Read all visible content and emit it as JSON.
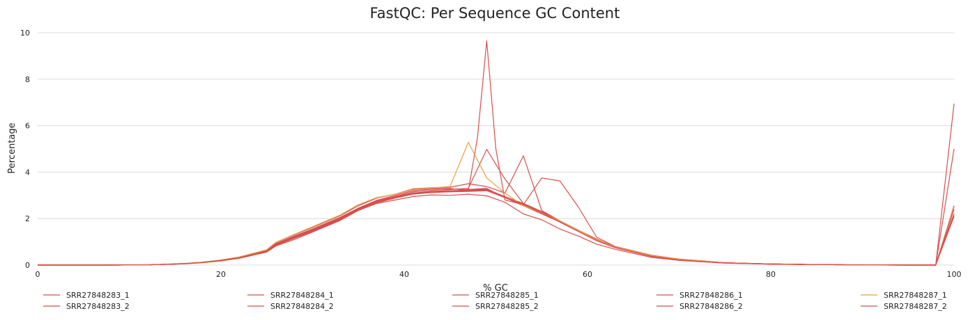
{
  "chart_data": {
    "type": "line",
    "title": "FastQC: Per Sequence GC Content",
    "xlabel": "% GC",
    "ylabel": "Percentage",
    "xlim": [
      0,
      100
    ],
    "ylim": [
      0,
      10
    ],
    "xticks": [
      0,
      20,
      40,
      60,
      80,
      100
    ],
    "yticks": [
      0,
      2,
      4,
      6,
      8,
      10
    ],
    "grid": "horizontal",
    "legend_position": "bottom",
    "series": [
      {
        "name": "SRR27848283_1",
        "color": "#d64e4e",
        "x": [
          0,
          8,
          12,
          16,
          18,
          20,
          22,
          24,
          25,
          26,
          28,
          30,
          33,
          35,
          37,
          39,
          41,
          43,
          45,
          47,
          49,
          51,
          53,
          55,
          57,
          59,
          61,
          63,
          67,
          70,
          75,
          80,
          85,
          90,
          95,
          98,
          100
        ],
        "y": [
          0,
          0,
          0.01,
          0.06,
          0.12,
          0.2,
          0.32,
          0.5,
          0.6,
          0.9,
          1.2,
          1.5,
          2.0,
          2.4,
          2.72,
          2.93,
          3.1,
          3.17,
          3.2,
          3.22,
          3.25,
          2.95,
          2.65,
          2.3,
          1.9,
          1.5,
          1.1,
          0.8,
          0.4,
          0.25,
          0.1,
          0.05,
          0.02,
          0.01,
          0,
          0,
          2.55
        ]
      },
      {
        "name": "SRR27848283_2",
        "color": "#d64e4e",
        "x": [
          0,
          8,
          12,
          16,
          18,
          20,
          22,
          24,
          25,
          26,
          28,
          30,
          33,
          35,
          37,
          39,
          41,
          43,
          45,
          47,
          49,
          51,
          53,
          55,
          57,
          59,
          61,
          63,
          67,
          70,
          75,
          80,
          85,
          90,
          95,
          98,
          100
        ],
        "y": [
          0,
          0,
          0.01,
          0.05,
          0.11,
          0.19,
          0.3,
          0.48,
          0.58,
          0.85,
          1.15,
          1.45,
          1.95,
          2.35,
          2.68,
          2.88,
          3.05,
          3.12,
          3.15,
          3.17,
          3.2,
          2.9,
          2.6,
          2.25,
          1.85,
          1.45,
          1.05,
          0.75,
          0.37,
          0.22,
          0.09,
          0.04,
          0.02,
          0.01,
          0,
          0,
          2.2
        ]
      },
      {
        "name": "SRR27848284_1",
        "color": "#d64e4e",
        "x": [
          0,
          8,
          12,
          16,
          18,
          20,
          22,
          24,
          25,
          26,
          28,
          30,
          33,
          35,
          37,
          39,
          41,
          43,
          45,
          47,
          48,
          49,
          50,
          51,
          53,
          55,
          57,
          59,
          61,
          63,
          67,
          70,
          75,
          80,
          85,
          90,
          95,
          98,
          100
        ],
        "y": [
          0,
          0,
          0.01,
          0.06,
          0.12,
          0.21,
          0.33,
          0.51,
          0.62,
          0.93,
          1.25,
          1.55,
          2.05,
          2.45,
          2.78,
          3.0,
          3.2,
          3.28,
          3.3,
          3.2,
          5.5,
          9.65,
          5.0,
          2.8,
          2.6,
          2.3,
          1.9,
          1.5,
          1.12,
          0.78,
          0.4,
          0.25,
          0.1,
          0.05,
          0.02,
          0.01,
          0,
          0,
          6.95
        ]
      },
      {
        "name": "SRR27848284_2",
        "color": "#d64e4e",
        "x": [
          0,
          8,
          12,
          16,
          18,
          20,
          22,
          24,
          25,
          26,
          28,
          30,
          33,
          35,
          37,
          39,
          41,
          43,
          45,
          47,
          49,
          51,
          53,
          55,
          57,
          59,
          61,
          63,
          67,
          70,
          75,
          80,
          85,
          90,
          95,
          98,
          100
        ],
        "y": [
          0,
          0,
          0.01,
          0.06,
          0.12,
          0.2,
          0.32,
          0.5,
          0.6,
          0.9,
          1.2,
          1.52,
          2.02,
          2.42,
          2.75,
          2.95,
          3.15,
          3.22,
          3.25,
          3.3,
          4.98,
          3.7,
          2.65,
          2.3,
          1.9,
          1.5,
          1.1,
          0.78,
          0.4,
          0.24,
          0.1,
          0.05,
          0.02,
          0.01,
          0,
          0,
          5.0
        ]
      },
      {
        "name": "SRR27848285_1",
        "color": "#d64e4e",
        "x": [
          0,
          8,
          12,
          16,
          18,
          20,
          22,
          24,
          25,
          26,
          28,
          30,
          33,
          35,
          37,
          39,
          41,
          43,
          45,
          47,
          49,
          51,
          53,
          55,
          57,
          59,
          61,
          63,
          67,
          70,
          75,
          80,
          85,
          90,
          95,
          98,
          100
        ],
        "y": [
          0,
          0,
          0.01,
          0.07,
          0.13,
          0.22,
          0.35,
          0.55,
          0.66,
          0.98,
          1.3,
          1.62,
          2.12,
          2.55,
          2.88,
          3.05,
          3.28,
          3.33,
          3.35,
          3.5,
          3.38,
          3.1,
          4.7,
          2.35,
          1.9,
          1.5,
          1.12,
          0.78,
          0.4,
          0.25,
          0.1,
          0.05,
          0.02,
          0.01,
          0,
          0,
          2.55
        ]
      },
      {
        "name": "SRR27848285_2",
        "color": "#d64e4e",
        "x": [
          0,
          8,
          12,
          16,
          18,
          20,
          22,
          24,
          25,
          26,
          28,
          30,
          33,
          35,
          37,
          39,
          41,
          43,
          45,
          47,
          49,
          51,
          53,
          55,
          57,
          59,
          61,
          63,
          67,
          70,
          75,
          80,
          85,
          90,
          95,
          98,
          100
        ],
        "y": [
          0,
          0,
          0.01,
          0.06,
          0.12,
          0.2,
          0.32,
          0.5,
          0.6,
          0.88,
          1.18,
          1.5,
          2.0,
          2.4,
          2.7,
          2.9,
          3.1,
          3.15,
          3.18,
          3.2,
          3.22,
          2.9,
          2.55,
          2.2,
          1.85,
          1.45,
          1.05,
          0.75,
          0.37,
          0.22,
          0.09,
          0.04,
          0.02,
          0.01,
          0,
          0,
          2.1
        ]
      },
      {
        "name": "SRR27848286_1",
        "color": "#d64e4e",
        "x": [
          0,
          8,
          12,
          16,
          18,
          20,
          22,
          24,
          25,
          26,
          28,
          30,
          33,
          35,
          37,
          39,
          41,
          43,
          45,
          47,
          49,
          51,
          53,
          55,
          57,
          59,
          61,
          63,
          67,
          70,
          75,
          80,
          85,
          90,
          95,
          98,
          100
        ],
        "y": [
          0,
          0,
          0.01,
          0.06,
          0.12,
          0.21,
          0.33,
          0.52,
          0.63,
          0.92,
          1.22,
          1.55,
          2.05,
          2.45,
          2.78,
          3.0,
          3.2,
          3.27,
          3.28,
          3.25,
          3.3,
          2.9,
          2.6,
          3.75,
          3.62,
          2.5,
          1.2,
          0.8,
          0.42,
          0.26,
          0.1,
          0.05,
          0.02,
          0.01,
          0,
          0,
          2.5
        ]
      },
      {
        "name": "SRR27848286_2",
        "color": "#d64e4e",
        "x": [
          0,
          8,
          12,
          16,
          18,
          20,
          22,
          24,
          25,
          26,
          28,
          30,
          33,
          35,
          37,
          39,
          41,
          43,
          45,
          47,
          49,
          51,
          53,
          55,
          57,
          59,
          61,
          63,
          67,
          70,
          75,
          80,
          85,
          90,
          95,
          98,
          100
        ],
        "y": [
          0,
          0,
          0.01,
          0.05,
          0.1,
          0.18,
          0.29,
          0.47,
          0.56,
          0.82,
          1.1,
          1.42,
          1.92,
          2.35,
          2.65,
          2.8,
          2.95,
          3.02,
          3.0,
          3.05,
          2.98,
          2.7,
          2.2,
          1.95,
          1.55,
          1.25,
          0.9,
          0.68,
          0.33,
          0.2,
          0.08,
          0.04,
          0.02,
          0.01,
          0,
          0,
          2.2
        ]
      },
      {
        "name": "SRR27848287_1",
        "color": "#e8a040",
        "x": [
          0,
          8,
          12,
          16,
          18,
          20,
          22,
          24,
          25,
          26,
          28,
          30,
          33,
          35,
          37,
          39,
          41,
          43,
          45,
          47,
          49,
          51,
          53,
          55,
          57,
          59,
          61,
          63,
          67,
          70,
          75,
          80,
          85,
          90,
          95,
          98,
          100
        ],
        "y": [
          0,
          0,
          0.01,
          0.07,
          0.13,
          0.22,
          0.35,
          0.55,
          0.66,
          0.98,
          1.32,
          1.65,
          2.15,
          2.6,
          2.9,
          3.05,
          3.25,
          3.32,
          3.38,
          5.28,
          3.75,
          3.1,
          2.55,
          2.25,
          1.9,
          1.5,
          1.1,
          0.78,
          0.4,
          0.25,
          0.1,
          0.05,
          0.02,
          0.01,
          0,
          0,
          2.5
        ]
      },
      {
        "name": "SRR27848287_2",
        "color": "#d64e4e",
        "x": [
          0,
          8,
          12,
          16,
          18,
          20,
          22,
          24,
          25,
          26,
          28,
          30,
          33,
          35,
          37,
          39,
          41,
          43,
          45,
          47,
          49,
          51,
          53,
          55,
          57,
          59,
          61,
          63,
          67,
          70,
          75,
          80,
          85,
          90,
          95,
          98,
          100
        ],
        "y": [
          0,
          0,
          0.01,
          0.06,
          0.11,
          0.2,
          0.31,
          0.49,
          0.59,
          0.87,
          1.17,
          1.48,
          1.98,
          2.38,
          2.7,
          2.9,
          3.08,
          3.14,
          3.17,
          3.2,
          3.28,
          2.9,
          2.62,
          2.25,
          1.85,
          1.45,
          1.05,
          0.75,
          0.37,
          0.22,
          0.09,
          0.04,
          0.02,
          0.01,
          0,
          0,
          2.4
        ]
      }
    ]
  }
}
